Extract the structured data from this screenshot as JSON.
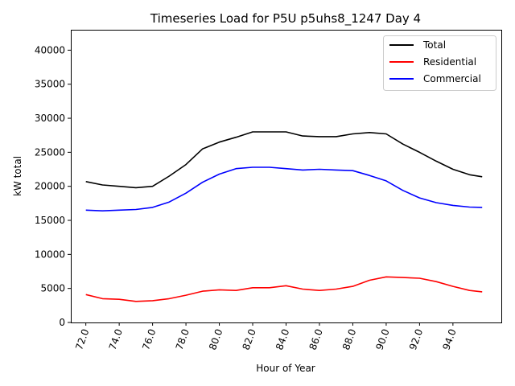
{
  "chart_data": {
    "type": "line",
    "title": "Timeseries Load for P5U p5uhs8_1247  Day 4",
    "xlabel": "Hour of Year",
    "ylabel": "kW total",
    "xlim": [
      71.1,
      96.9
    ],
    "ylim": [
      0,
      43000
    ],
    "xticks": [
      72,
      74,
      76,
      78,
      80,
      82,
      84,
      86,
      88,
      90,
      92,
      94
    ],
    "xtick_labels": [
      "72.0",
      "74.0",
      "76.0",
      "78.0",
      "80.0",
      "82.0",
      "84.0",
      "86.0",
      "88.0",
      "90.0",
      "92.0",
      "94.0"
    ],
    "yticks": [
      0,
      5000,
      10000,
      15000,
      20000,
      25000,
      30000,
      35000,
      40000
    ],
    "ytick_labels": [
      "0",
      "5000",
      "10000",
      "15000",
      "20000",
      "25000",
      "30000",
      "35000",
      "40000"
    ],
    "legend_position": "top-right",
    "x": [
      72,
      73,
      74,
      75,
      76,
      77,
      78,
      79,
      80,
      81,
      82,
      83,
      84,
      85,
      86,
      87,
      88,
      89,
      90,
      91,
      92,
      93,
      94,
      95,
      95.75
    ],
    "series": [
      {
        "name": "Total",
        "color": "#000000",
        "values": [
          20700,
          20200,
          20000,
          19800,
          20000,
          21500,
          23200,
          25500,
          26500,
          27200,
          28000,
          28000,
          28000,
          27400,
          27300,
          27300,
          27700,
          27900,
          27700,
          26200,
          25000,
          23700,
          22500,
          21700,
          21400
        ]
      },
      {
        "name": "Residential",
        "color": "#ff0000",
        "values": [
          4100,
          3500,
          3400,
          3100,
          3200,
          3500,
          4000,
          4600,
          4800,
          4700,
          5100,
          5100,
          5400,
          4900,
          4700,
          4900,
          5300,
          6200,
          6700,
          6600,
          6500,
          6000,
          5300,
          4700,
          4500
        ]
      },
      {
        "name": "Commercial",
        "color": "#0000ff",
        "values": [
          16500,
          16400,
          16500,
          16600,
          16900,
          17700,
          19000,
          20600,
          21800,
          22600,
          22800,
          22800,
          22600,
          22400,
          22500,
          22400,
          22300,
          21600,
          20800,
          19400,
          18300,
          17600,
          17200,
          16950,
          16900
        ]
      }
    ]
  }
}
